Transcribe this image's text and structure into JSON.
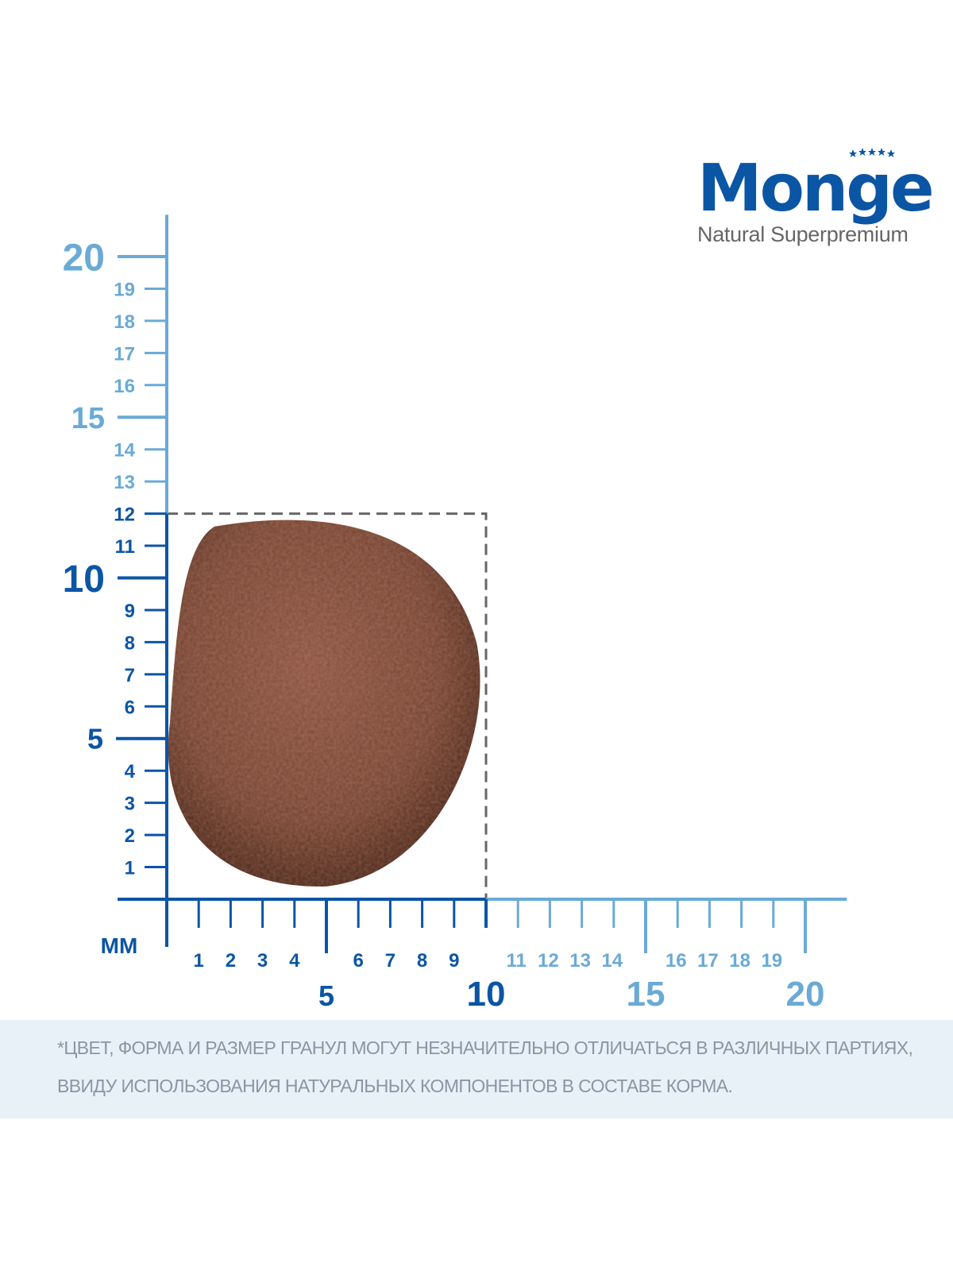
{
  "logo": {
    "brand": "Monge",
    "tagline": "Natural Superpremium"
  },
  "unit_label": "мм",
  "colors": {
    "dark_blue": "#0b55a5",
    "light_blue": "#6aaad6",
    "kibble": "#7a4030",
    "dashed": "#666666"
  },
  "x_axis": {
    "min": 0,
    "max": 20,
    "dark_until": 10,
    "minor_labels": [
      "1",
      "2",
      "3",
      "4",
      "6",
      "7",
      "8",
      "9",
      "11",
      "12",
      "13",
      "14",
      "16",
      "17",
      "18",
      "19"
    ],
    "major_labels": [
      "5",
      "10",
      "15",
      "20"
    ]
  },
  "y_axis": {
    "min": 0,
    "max": 20,
    "dark_until": 12,
    "minor_labels": [
      "1",
      "2",
      "3",
      "4",
      "6",
      "7",
      "8",
      "9",
      "11",
      "12",
      "13",
      "14",
      "16",
      "17",
      "18",
      "19"
    ],
    "major_labels": [
      "5",
      "10",
      "15",
      "20"
    ]
  },
  "kibble": {
    "width_mm": 10,
    "height_mm": 12
  },
  "note": {
    "line1": "*ЦВЕТ, ФОРМА И РАЗМЕР ГРАНУЛ МОГУТ НЕЗНАЧИТЕЛЬНО ОТЛИЧАТЬСЯ В РАЗЛИЧНЫХ ПАРТИЯХ,",
    "line2": "ВВИДУ ИСПОЛЬЗОВАНИЯ НАТУРАЛЬНЫХ КОМПОНЕНТОВ В СОСТАВЕ КОРМА."
  }
}
